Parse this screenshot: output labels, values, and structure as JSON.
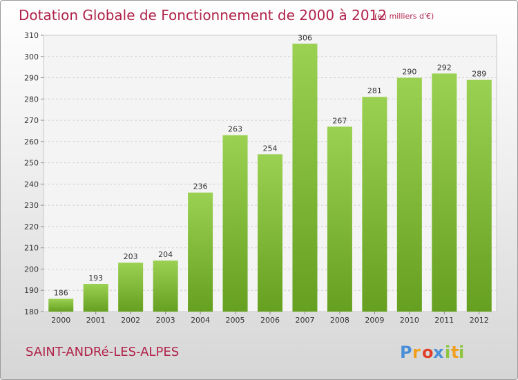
{
  "chart_data": {
    "type": "bar",
    "title": "Dotation Globale de Fonctionnement de 2000 à 2012",
    "subtitle": "(en milliers d'€)",
    "categories": [
      "2000",
      "2001",
      "2002",
      "2003",
      "2004",
      "2005",
      "2006",
      "2007",
      "2008",
      "2009",
      "2010",
      "2011",
      "2012"
    ],
    "values": [
      186,
      193,
      203,
      204,
      236,
      263,
      254,
      306,
      267,
      281,
      290,
      292,
      289
    ],
    "ylim": [
      180,
      310
    ],
    "yticks": [
      180,
      190,
      200,
      210,
      220,
      230,
      240,
      250,
      260,
      270,
      280,
      290,
      300,
      310
    ],
    "grid": true,
    "bar_color": "#7cb82f",
    "xlabel": "",
    "ylabel": ""
  },
  "footer": {
    "commune": "SAINT-ANDRé-LES-ALPES",
    "logo_letters": [
      "P",
      "r",
      "o",
      "x",
      "i",
      "t",
      "i"
    ],
    "logo_colors": [
      "#4a90d9",
      "#f0a020",
      "#e0402a",
      "#4a90d9",
      "#8cc63f",
      "#f0a020",
      "#8cc63f"
    ]
  }
}
